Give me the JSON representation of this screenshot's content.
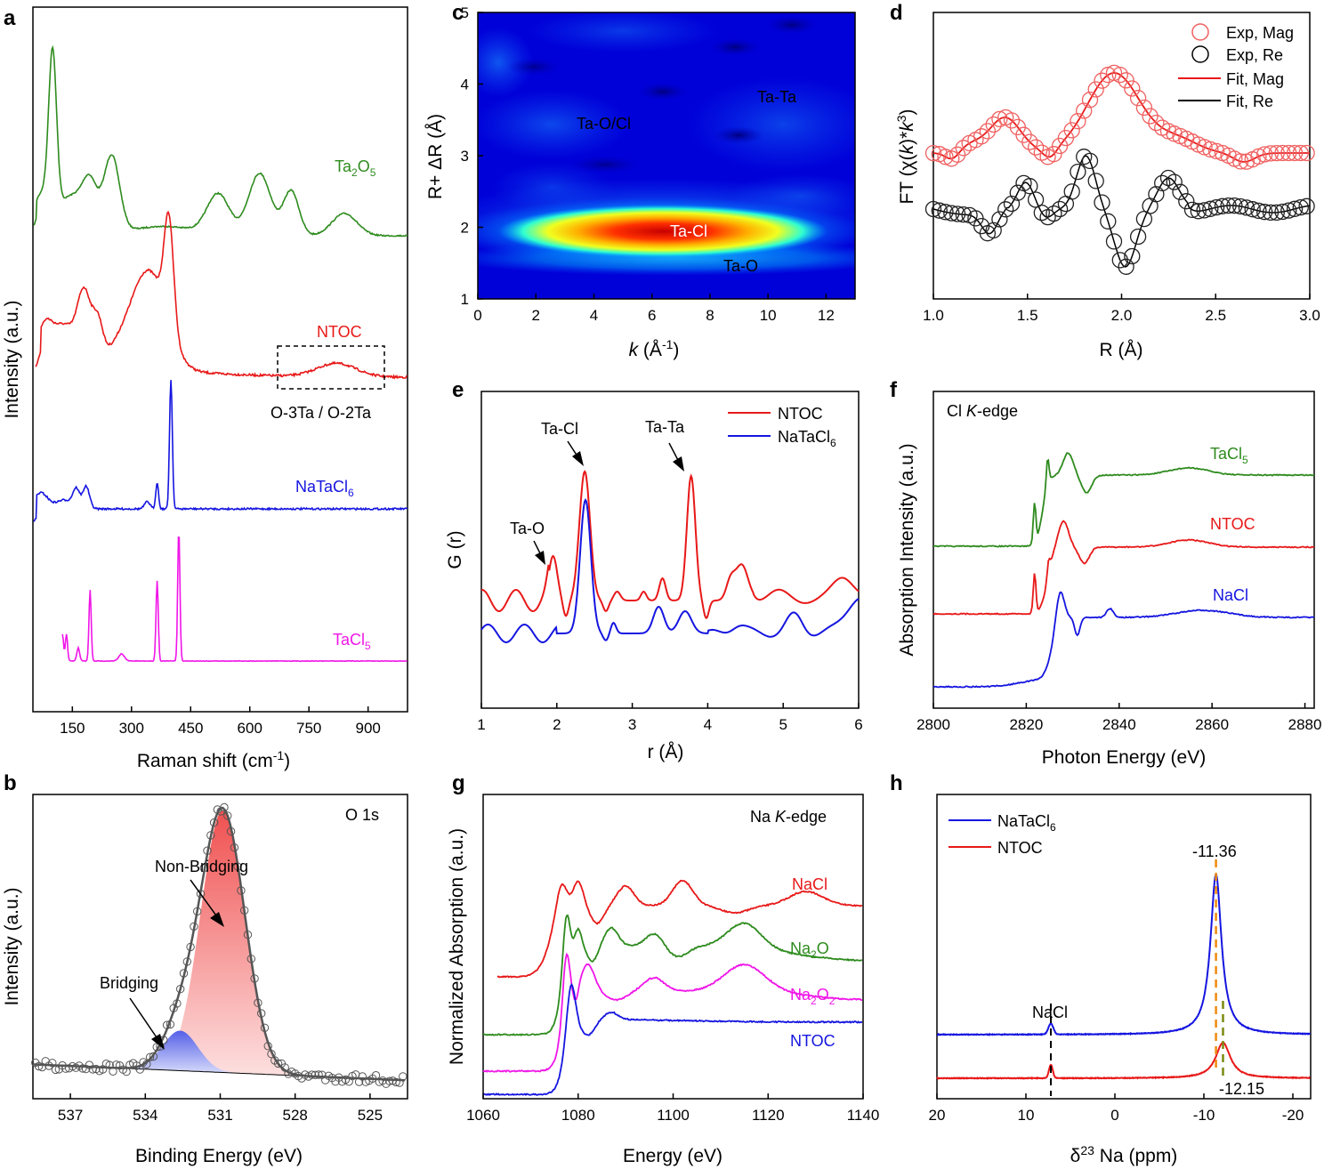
{
  "panels": {
    "a": "a",
    "b": "b",
    "c": "c",
    "d": "d",
    "e": "e",
    "f": "f",
    "g": "g",
    "h": "h"
  },
  "colors": {
    "green": "#2e8b1e",
    "red": "#e81818",
    "blue": "#1515e0",
    "magenta": "#f016e8",
    "mag_red": "#f06060",
    "black": "#000000",
    "gray": "#555555",
    "pink_fill": "#f57a7a",
    "blue_fill": "#8a90ee",
    "orange_dash": "#f08a10",
    "olive_dash": "#7a8a10"
  },
  "chart_data": [
    {
      "id": "a",
      "type": "line",
      "xlabel": "Raman shift (cm⁻¹)",
      "ylabel": "Intensity (a.u.)",
      "xlim": [
        50,
        1000
      ],
      "xticks": [
        150,
        300,
        450,
        600,
        750,
        900
      ],
      "y_ticks_shown": false,
      "series": [
        {
          "name": "Ta₂O₅",
          "color": "green",
          "peaks_cm1": [
            100,
            195,
            250,
            520,
            625,
            705,
            830
          ]
        },
        {
          "name": "NTOC",
          "color": "red",
          "peaks_cm1": [
            85,
            180,
            215,
            395,
            840
          ]
        },
        {
          "name": "NaTaCl₆",
          "color": "blue",
          "peaks_cm1": [
            60,
            160,
            185,
            365,
            400
          ]
        },
        {
          "name": "TaCl₅",
          "color": "magenta",
          "peaks_cm1": [
            125,
            135,
            165,
            195,
            275,
            365,
            420
          ]
        }
      ],
      "annotation": "O-3Ta / O-2Ta"
    },
    {
      "id": "b",
      "type": "scatter",
      "title": "O 1s",
      "xlabel": "Binding Energy (eV)",
      "ylabel": "Intensity (a.u.)",
      "xlim": [
        538.5,
        523.5
      ],
      "xticks": [
        537,
        534,
        531,
        528,
        525
      ],
      "components": [
        {
          "name": "Non-Bridging",
          "center_eV": 530.9,
          "color": "pink_fill"
        },
        {
          "name": "Bridging",
          "center_eV": 532.6,
          "color": "blue_fill"
        }
      ]
    },
    {
      "id": "c",
      "type": "heatmap",
      "xlabel": "k (Å⁻¹)",
      "ylabel": "R+ ΔR (Å)",
      "xlim": [
        0,
        13
      ],
      "ylim": [
        1,
        5
      ],
      "xticks": [
        0,
        2,
        4,
        6,
        8,
        10,
        12
      ],
      "yticks": [
        1,
        2,
        3,
        4,
        5
      ],
      "features": [
        {
          "label": "Ta-Cl",
          "k": 7.2,
          "R": 2.0
        },
        {
          "label": "Ta-O",
          "k": 9.0,
          "R": 1.5
        },
        {
          "label": "Ta-O/Cl",
          "k": 4.6,
          "R": 3.5
        },
        {
          "label": "Ta-Ta",
          "k": 10.4,
          "R": 3.85
        }
      ]
    },
    {
      "id": "d",
      "type": "scatter",
      "xlabel": "R (Å)",
      "ylabel": "FT (χ(k)*k³)",
      "xlim": [
        1.0,
        3.0
      ],
      "xticks": [
        1.0,
        1.5,
        2.0,
        2.5,
        3.0
      ],
      "legend": [
        "Exp, Mag",
        "Exp, Re",
        "Fit, Mag",
        "Fit, Re"
      ],
      "legend_position": "top-right"
    },
    {
      "id": "e",
      "type": "line",
      "xlabel": "r (Å)",
      "ylabel": "G (r)",
      "xlim": [
        1,
        6
      ],
      "xticks": [
        1,
        2,
        3,
        4,
        5,
        6
      ],
      "series": [
        {
          "name": "NTOC",
          "color": "red",
          "peaks_A": [
            1.95,
            2.38,
            3.78,
            4.45
          ]
        },
        {
          "name": "NaTaCl₆",
          "color": "blue",
          "peaks_A": [
            2.38,
            3.35
          ]
        }
      ],
      "annotations": [
        "Ta-Cl",
        "Ta-Ta",
        "Ta-O"
      ]
    },
    {
      "id": "f",
      "type": "line",
      "title": "Cl K-edge",
      "xlabel": "Photon Energy (eV)",
      "ylabel": "Absorption Intensity (a.u.)",
      "xlim": [
        2800,
        2882
      ],
      "xticks": [
        2800,
        2820,
        2840,
        2860,
        2880
      ],
      "series": [
        {
          "name": "TaCl₅",
          "color": "green"
        },
        {
          "name": "NTOC",
          "color": "red"
        },
        {
          "name": "NaCl",
          "color": "blue"
        }
      ]
    },
    {
      "id": "g",
      "type": "line",
      "title": "Na K-edge",
      "xlabel": "Energy (eV)",
      "ylabel": "Normalized Absorption (a.u.)",
      "xlim": [
        1060,
        1140
      ],
      "xticks": [
        1060,
        1080,
        1100,
        1120,
        1140
      ],
      "series": [
        {
          "name": "NaCl",
          "color": "red"
        },
        {
          "name": "Na₂O",
          "color": "green"
        },
        {
          "name": "Na₂O₂",
          "color": "magenta"
        },
        {
          "name": "NTOC",
          "color": "blue"
        }
      ]
    },
    {
      "id": "h",
      "type": "line",
      "xlabel": "δ²³ Na (ppm)",
      "xlim": [
        20,
        -22
      ],
      "xticks": [
        20,
        10,
        0,
        -10,
        -20
      ],
      "series": [
        {
          "name": "NaTaCl₆",
          "color": "blue",
          "peak_ppm": -11.36
        },
        {
          "name": "NTOC",
          "color": "red",
          "peak_ppm": -12.15
        }
      ],
      "annotations": [
        "NaCl",
        "-11.36",
        "-12.15"
      ],
      "nacl_ppm": 7.2
    }
  ],
  "text": {
    "a_label_ta2o5_main": "Ta",
    "a_label_ta2o5_s1": "2",
    "a_label_ta2o5_m2": "O",
    "a_label_ta2o5_s2": "5",
    "a_label_ntoc": "NTOC",
    "a_label_natacl_main": "NaTaCl",
    "a_label_natacl_sub": "6",
    "a_label_tacl_main": "TaCl",
    "a_label_tacl_sub": "5",
    "a_annotation": "O-3Ta / O-2Ta",
    "a_xlabel_main": "Raman shift (cm",
    "a_xlabel_sup": "-1",
    "a_xlabel_end": ")",
    "a_ylabel": "Intensity (a.u.)",
    "b_title": "O 1s",
    "b_nonbridging": "Non-Bridging",
    "b_bridging": "Bridging",
    "b_xlabel": "Binding Energy (eV)",
    "b_ylabel": "Intensity (a.u.)",
    "c_tacl": "Ta-Cl",
    "c_tao": "Ta-O",
    "c_taocl": "Ta-O/Cl",
    "c_tata": "Ta-Ta",
    "c_xlabel_k": "k",
    "c_xlabel_rest": " (Å",
    "c_xlabel_sup": "-1",
    "c_xlabel_end": ")",
    "c_ylabel": "R+ ΔR (Å)",
    "d_leg1": "Exp, Mag",
    "d_leg2": "Exp, Re",
    "d_leg3": "Fit, Mag",
    "d_leg4": "Fit, Re",
    "d_xlabel": "R (Å)",
    "d_ylabel_a": "FT (χ(",
    "d_ylabel_k": "k",
    "d_ylabel_b": ")*",
    "d_ylabel_k2": "k",
    "d_ylabel_sup": "3",
    "d_ylabel_c": ")",
    "e_leg1": "NTOC",
    "e_leg2_main": "NaTaCl",
    "e_leg2_sub": "6",
    "e_tacl": "Ta-Cl",
    "e_tata": "Ta-Ta",
    "e_tao": "Ta-O",
    "e_xlabel": "r (Å)",
    "e_ylabel": "G (r)",
    "f_title_a": "Cl ",
    "f_title_k": "K",
    "f_title_b": "-edge",
    "f_tacl_main": "TaCl",
    "f_tacl_sub": "5",
    "f_ntoc": "NTOC",
    "f_nacl": "NaCl",
    "f_xlabel": "Photon Energy (eV)",
    "f_ylabel": "Absorption Intensity (a.u.)",
    "g_title_a": "Na ",
    "g_title_k": "K",
    "g_title_b": "-edge",
    "g_nacl": "NaCl",
    "g_na2o_a": "Na",
    "g_na2o_s": "2",
    "g_na2o_b": "O",
    "g_na2o2_a": "Na",
    "g_na2o2_s1": "2",
    "g_na2o2_b": "O",
    "g_na2o2_s2": "2",
    "g_ntoc": "NTOC",
    "g_xlabel": "Energy (eV)",
    "g_ylabel": "Normalized Absorption (a.u.)",
    "h_leg1_main": "NaTaCl",
    "h_leg1_sub": "6",
    "h_leg2": "NTOC",
    "h_nacl": "NaCl",
    "h_v1": "-11.36",
    "h_v2": "-12.15",
    "h_xlabel_d": "δ",
    "h_xlabel_sup": "23",
    "h_xlabel_rest": " Na (ppm)"
  }
}
